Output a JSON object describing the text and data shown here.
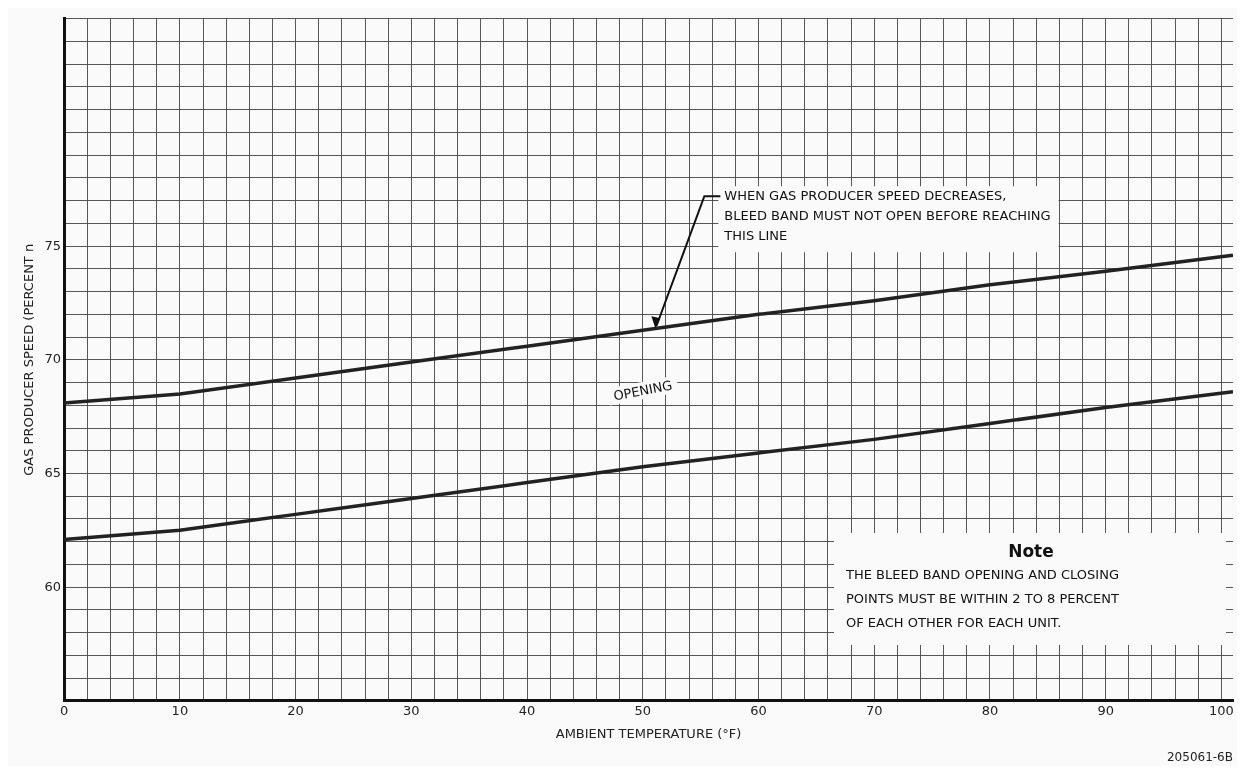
{
  "chart_data": {
    "type": "line",
    "xlabel": "AMBIENT TEMPERATURE (°F)",
    "ylabel": "GAS PRODUCER SPEED (PERCENT n",
    "series": [
      {
        "color": "#222222",
        "x": [
          0,
          10,
          20,
          30,
          40,
          50,
          60,
          70,
          80,
          90,
          101
        ],
        "values": [
          68.1,
          68.5,
          69.2,
          69.9,
          70.6,
          71.3,
          72.0,
          72.6,
          73.3,
          73.9,
          74.6
        ]
      },
      {
        "color": "#222222",
        "x": [
          0,
          10,
          20,
          30,
          40,
          50,
          60,
          70,
          80,
          90,
          101
        ],
        "values": [
          62.1,
          62.5,
          63.2,
          63.9,
          64.6,
          65.3,
          65.9,
          66.5,
          67.2,
          67.9,
          68.6
        ]
      }
    ],
    "xlim": [
      0,
      101
    ],
    "ylim": [
      55,
      85
    ],
    "xticks": [
      0,
      {
        "value": 2,
        "label": null
      },
      {
        "value": 4,
        "label": null
      },
      {
        "value": 6,
        "label": null
      },
      {
        "value": 8,
        "label": null
      },
      10,
      {
        "value": 12,
        "label": null
      },
      {
        "value": 14,
        "label": null
      },
      {
        "value": 16,
        "label": null
      },
      {
        "value": 18,
        "label": null
      },
      20,
      {
        "value": 22,
        "label": null
      },
      {
        "value": 24,
        "label": null
      },
      {
        "value": 26,
        "label": null
      },
      {
        "value": 28,
        "label": null
      },
      30,
      {
        "value": 32,
        "label": null
      },
      {
        "value": 34,
        "label": null
      },
      {
        "value": 36,
        "label": null
      },
      {
        "value": 38,
        "label": null
      },
      40,
      {
        "value": 42,
        "label": null
      },
      {
        "value": 44,
        "label": null
      },
      {
        "value": 46,
        "label": null
      },
      {
        "value": 48,
        "label": null
      },
      50,
      {
        "value": 52,
        "label": null
      },
      {
        "value": 54,
        "label": null
      },
      {
        "value": 56,
        "label": null
      },
      {
        "value": 58,
        "label": null
      },
      60,
      {
        "value": 62,
        "label": null
      },
      {
        "value": 64,
        "label": null
      },
      {
        "value": 66,
        "label": null
      },
      {
        "value": 68,
        "label": null
      },
      70,
      {
        "value": 72,
        "label": null
      },
      {
        "value": 74,
        "label": null
      },
      {
        "value": 76,
        "label": null
      },
      {
        "value": 78,
        "label": null
      },
      80,
      {
        "value": 82,
        "label": null
      },
      {
        "value": 84,
        "label": null
      },
      {
        "value": 86,
        "label": null
      },
      {
        "value": 88,
        "label": null
      },
      90,
      {
        "value": 92,
        "label": null
      },
      {
        "value": 94,
        "label": null
      },
      {
        "value": 96,
        "label": null
      },
      {
        "value": 98,
        "label": null
      },
      100
    ],
    "yticks": [
      {
        "value": 55,
        "label": null
      },
      {
        "value": 56,
        "label": null
      },
      {
        "value": 57,
        "label": null
      },
      {
        "value": 58,
        "label": null
      },
      {
        "value": 59,
        "label": null
      },
      60,
      {
        "value": 61,
        "label": null
      },
      {
        "value": 62,
        "label": null
      },
      {
        "value": 63,
        "label": null
      },
      {
        "value": 64,
        "label": null
      },
      65,
      {
        "value": 66,
        "label": null
      },
      {
        "value": 67,
        "label": null
      },
      {
        "value": 68,
        "label": null
      },
      {
        "value": 69,
        "label": null
      },
      70,
      {
        "value": 71,
        "label": null
      },
      {
        "value": 72,
        "label": null
      },
      {
        "value": 73,
        "label": null
      },
      {
        "value": 74,
        "label": null
      },
      75,
      {
        "value": 76,
        "label": null
      },
      {
        "value": 77,
        "label": null
      },
      {
        "value": 78,
        "label": null
      },
      {
        "value": 79,
        "label": null
      },
      {
        "value": 80,
        "label": null
      },
      {
        "value": 81,
        "label": null
      },
      {
        "value": 82,
        "label": null
      },
      {
        "value": 83,
        "label": null
      },
      {
        "value": 84,
        "label": null
      },
      {
        "value": 85,
        "label": null
      }
    ],
    "grid": true,
    "marker": "none",
    "line_style": "solid",
    "annotations": [
      {
        "text": "WHEN GAS PRODUCER SPEED DECREASES,\nBLEED BAND MUST NOT OPEN BEFORE REACHING\nTHIS LINE",
        "x": 51,
        "y": 71.3
      },
      "OPENING",
      "Note",
      "THE BLEED BAND OPENING AND CLOSING\nPOINTS MUST BE WITHIN 2 TO 8 PERCENT\nOF EACH OTHER FOR EACH UNIT.",
      "205061-6B"
    ]
  }
}
